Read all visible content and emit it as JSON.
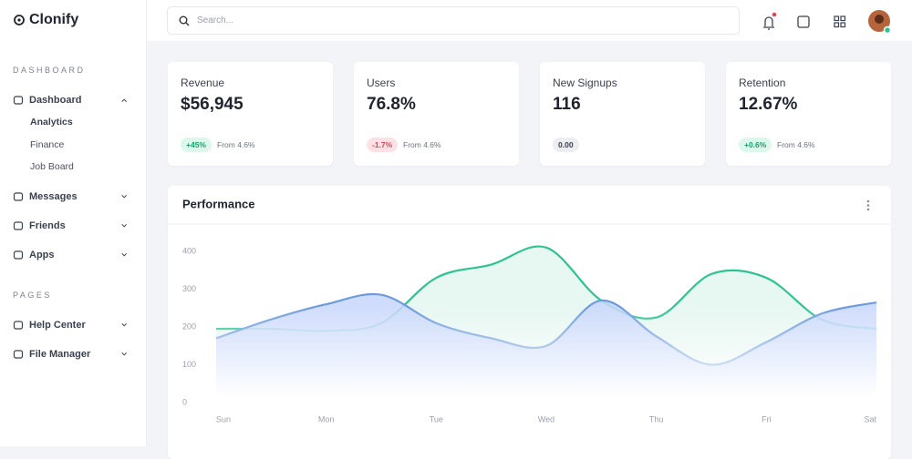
{
  "sidebar": {
    "brand": "Clonify",
    "sections": [
      {
        "title": "DASHBOARD",
        "items": [
          {
            "label": "Dashboard",
            "children": [
              "Analytics",
              "Finance",
              "Job Board"
            ]
          },
          {
            "label": "Messages"
          },
          {
            "label": "Friends"
          },
          {
            "label": "Apps"
          }
        ]
      },
      {
        "title": "PAGES",
        "items": [
          {
            "label": "Help Center"
          },
          {
            "label": "File Manager"
          }
        ]
      }
    ]
  },
  "header": {
    "search_placeholder": "Search..."
  },
  "stats": [
    {
      "label": "Revenue",
      "value": "$56,945",
      "badge": "+45%",
      "badge_color": "#16a36b",
      "badge_bg": "#dcf7ec",
      "note": "From 4.6%"
    },
    {
      "label": "Users",
      "value": "76.8%",
      "badge": "-1.7%",
      "badge_color": "#e0445a",
      "badge_bg": "#fde1e5",
      "note": "From 4.6%"
    },
    {
      "label": "New Signups",
      "value": "116",
      "badge": "0.00",
      "badge_color": "#3a4150",
      "badge_bg": "#eceef2"
    },
    {
      "label": "Retention",
      "value": "12.67%",
      "badge": "+0.6%",
      "badge_color": "#16a36b",
      "badge_bg": "#dcf7ec",
      "note": "From 4.6%"
    }
  ],
  "chart_data": {
    "type": "area",
    "title": "Performance",
    "categories": [
      "Sun",
      null,
      "Mon",
      null,
      "Tue",
      null,
      "Wed",
      null,
      "Thu",
      null,
      "Fri",
      null,
      "Sat"
    ],
    "series": [
      {
        "color": "#2fc393",
        "fill": "#e3f6ee",
        "values": [
          195,
          195,
          190,
          210,
          330,
          365,
          410,
          270,
          225,
          340,
          330,
          220,
          195
        ]
      },
      {
        "color": "#6d9be0",
        "fill": "#c8d6fb",
        "values": [
          170,
          220,
          260,
          285,
          210,
          170,
          150,
          270,
          175,
          100,
          160,
          235,
          265
        ]
      }
    ],
    "ylim": [
      0,
      400
    ],
    "yticks": [
      0,
      100,
      200,
      300,
      400
    ]
  }
}
